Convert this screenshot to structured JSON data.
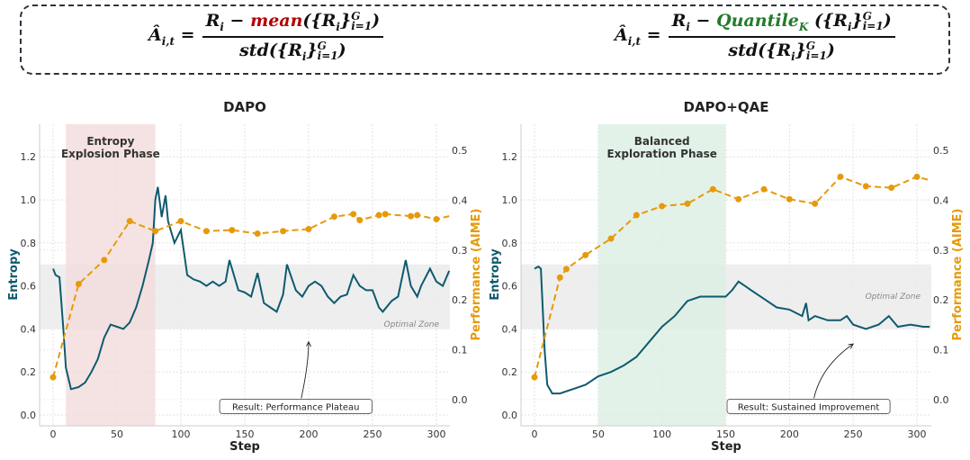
{
  "formulas": {
    "left": {
      "lhs": "Â",
      "lhs_sub": "i,t",
      "eq": "=",
      "num_a": "R",
      "num_a_sub": "i",
      "minus": " − ",
      "op": "mean",
      "set": "({R",
      "set_sub": "i",
      "set_close": "}",
      "sup": "G",
      "sub": "i=1",
      "close": ")",
      "den": "std({R",
      "den_sub": "i",
      "den_close": "}",
      "den_end": ")",
      "op_color": "#b30000"
    },
    "right": {
      "lhs": "Â",
      "lhs_sub": "i,t",
      "eq": "=",
      "num_a": "R",
      "num_a_sub": "i",
      "minus": " − ",
      "op": "Quantile",
      "op_sub": "K",
      "set": " ({R",
      "set_sub": "i",
      "set_close": "}",
      "sup": "G",
      "sub": "i=1",
      "close": ")",
      "den": "std({R",
      "den_sub": "i",
      "den_close": "}",
      "den_end": ")",
      "op_color": "#237a2b"
    }
  },
  "chart_data": [
    {
      "type": "line",
      "title": "DAPO",
      "xlabel": "Step",
      "ylabel": "Entropy",
      "y2label": "Performance (AIME)",
      "xlim": [
        -10,
        310
      ],
      "ylim": [
        -0.05,
        1.35
      ],
      "y2lim": [
        -0.05,
        0.55
      ],
      "xticks": [
        0,
        50,
        100,
        150,
        200,
        250,
        300
      ],
      "yticks": [
        0.0,
        0.2,
        0.4,
        0.6,
        0.8,
        1.0,
        1.2
      ],
      "y2ticks": [
        0.0,
        0.1,
        0.2,
        0.3,
        0.4,
        0.5
      ],
      "grid": true,
      "colors": {
        "entropy": "#0e5a6e",
        "performance": "#e69a0b",
        "phase": "#f3dcdc",
        "zone": "#ebebeb"
      },
      "phase": {
        "label": [
          "Entropy",
          "Explosion Phase"
        ],
        "x": [
          10,
          80
        ]
      },
      "zone": {
        "label": "Optimal Zone",
        "y": [
          0.4,
          0.7
        ]
      },
      "annotation": {
        "text": "Result: Performance Plateau",
        "at": [
          190,
          0.04
        ],
        "arrow_to": [
          200,
          0.34
        ]
      },
      "entropy": {
        "x": [
          0,
          2,
          5,
          8,
          10,
          14,
          20,
          25,
          30,
          35,
          40,
          45,
          50,
          55,
          60,
          65,
          70,
          75,
          78,
          80,
          82,
          85,
          88,
          90,
          95,
          100,
          105,
          110,
          115,
          120,
          125,
          130,
          135,
          138,
          145,
          150,
          155,
          160,
          165,
          170,
          175,
          180,
          183,
          190,
          195,
          200,
          205,
          210,
          215,
          220,
          225,
          230,
          235,
          240,
          245,
          250,
          255,
          258,
          265,
          270,
          276,
          280,
          285,
          288,
          295,
          300,
          305,
          310
        ],
        "y": [
          0.68,
          0.65,
          0.64,
          0.4,
          0.22,
          0.12,
          0.13,
          0.15,
          0.2,
          0.26,
          0.36,
          0.42,
          0.41,
          0.4,
          0.43,
          0.5,
          0.6,
          0.72,
          0.8,
          1.0,
          1.06,
          0.92,
          1.02,
          0.9,
          0.8,
          0.86,
          0.65,
          0.63,
          0.62,
          0.6,
          0.62,
          0.6,
          0.62,
          0.72,
          0.58,
          0.57,
          0.55,
          0.66,
          0.52,
          0.5,
          0.48,
          0.56,
          0.7,
          0.58,
          0.55,
          0.6,
          0.62,
          0.6,
          0.55,
          0.52,
          0.55,
          0.56,
          0.65,
          0.6,
          0.58,
          0.58,
          0.5,
          0.48,
          0.53,
          0.55,
          0.72,
          0.6,
          0.55,
          0.6,
          0.68,
          0.62,
          0.6,
          0.67
        ]
      },
      "performance": {
        "x": [
          0,
          20,
          40,
          60,
          80,
          100,
          120,
          140,
          160,
          180,
          200,
          220,
          235,
          240,
          255,
          260,
          280,
          285,
          300,
          310
        ],
        "y": [
          0.045,
          0.232,
          0.28,
          0.358,
          0.338,
          0.358,
          0.338,
          0.34,
          0.333,
          0.338,
          0.342,
          0.367,
          0.372,
          0.36,
          0.37,
          0.372,
          0.368,
          0.37,
          0.362,
          0.368
        ]
      }
    },
    {
      "type": "line",
      "title": "DAPO+QAE",
      "xlabel": "Step",
      "ylabel": "Entropy",
      "y2label": "Performance (AIME)",
      "xlim": [
        -10,
        310
      ],
      "ylim": [
        -0.05,
        1.35
      ],
      "y2lim": [
        -0.05,
        0.55
      ],
      "xticks": [
        0,
        50,
        100,
        150,
        200,
        250,
        300
      ],
      "yticks": [
        0.0,
        0.2,
        0.4,
        0.6,
        0.8,
        1.0,
        1.2
      ],
      "y2ticks": [
        0.0,
        0.1,
        0.2,
        0.3,
        0.4,
        0.5
      ],
      "grid": true,
      "colors": {
        "entropy": "#0e5a6e",
        "performance": "#e69a0b",
        "phase": "#dcefe2",
        "zone": "#ebebeb"
      },
      "phase": {
        "label": [
          "Balanced",
          "Exploration Phase"
        ],
        "x": [
          50,
          150
        ]
      },
      "zone": {
        "label": "Optimal Zone",
        "y": [
          0.4,
          0.7
        ]
      },
      "annotation": {
        "text": "Result: Sustained Improvement",
        "at": [
          215,
          0.04
        ],
        "arrow_to": [
          250,
          0.33
        ]
      },
      "entropy": {
        "x": [
          0,
          3,
          5,
          8,
          10,
          14,
          20,
          30,
          40,
          50,
          60,
          70,
          80,
          90,
          100,
          110,
          120,
          130,
          140,
          150,
          155,
          160,
          165,
          170,
          180,
          190,
          200,
          210,
          213,
          215,
          220,
          230,
          240,
          245,
          250,
          260,
          270,
          278,
          285,
          295,
          305,
          310
        ],
        "y": [
          0.68,
          0.69,
          0.68,
          0.3,
          0.14,
          0.1,
          0.1,
          0.12,
          0.14,
          0.18,
          0.2,
          0.23,
          0.27,
          0.34,
          0.41,
          0.46,
          0.53,
          0.55,
          0.55,
          0.55,
          0.58,
          0.62,
          0.6,
          0.58,
          0.54,
          0.5,
          0.49,
          0.46,
          0.52,
          0.44,
          0.46,
          0.44,
          0.44,
          0.46,
          0.42,
          0.4,
          0.42,
          0.46,
          0.41,
          0.42,
          0.41,
          0.41
        ]
      },
      "performance": {
        "x": [
          0,
          20,
          25,
          40,
          60,
          80,
          100,
          120,
          140,
          160,
          180,
          200,
          220,
          240,
          260,
          280,
          300,
          310
        ],
        "y": [
          0.045,
          0.245,
          0.262,
          0.29,
          0.323,
          0.37,
          0.388,
          0.393,
          0.422,
          0.402,
          0.422,
          0.402,
          0.393,
          0.447,
          0.428,
          0.425,
          0.447,
          0.44
        ]
      }
    }
  ]
}
